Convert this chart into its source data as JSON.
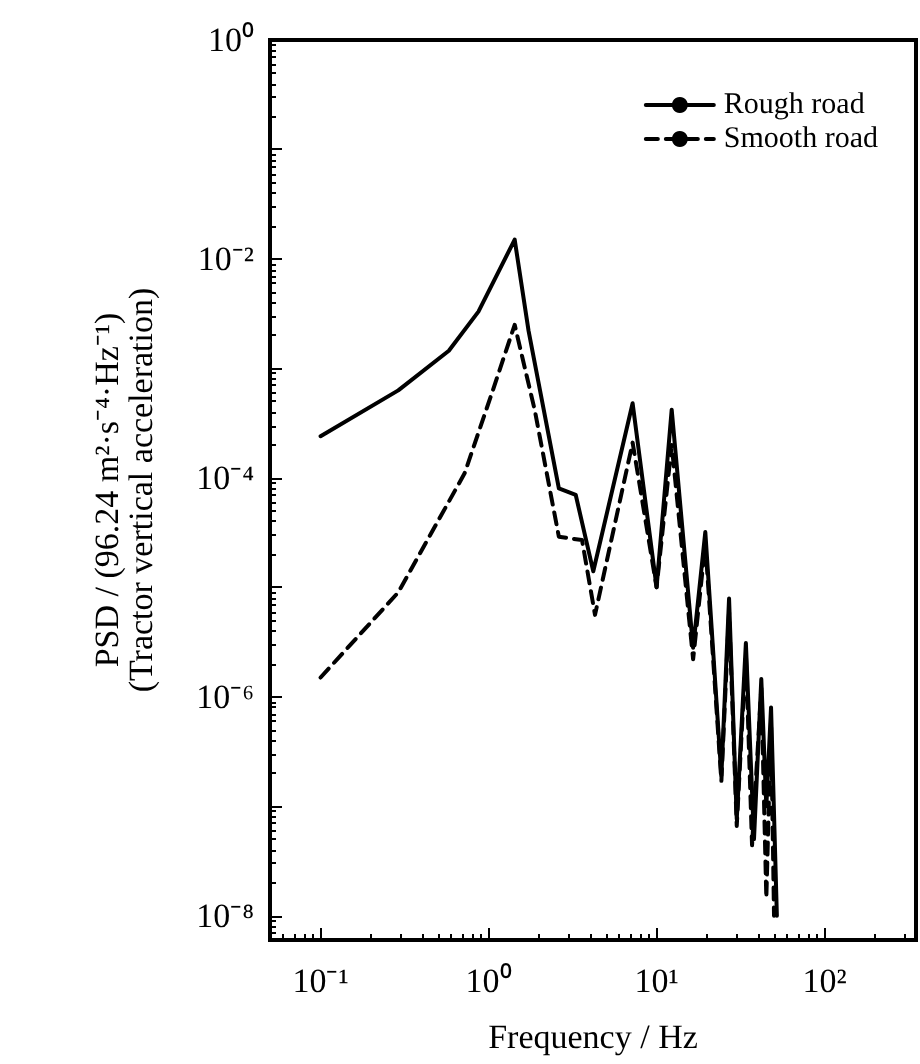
{
  "chart_data": {
    "type": "line",
    "xlabel": "Frequency / Hz",
    "ylabel": "PSD / (96.24 m²·s⁻⁴·Hz⁻¹)\n(Tractor vertical acceleration)",
    "log": "xy",
    "grid": false,
    "legend": "top right",
    "marker": "none",
    "xlim": [
      0.05,
      350
    ],
    "ylim": [
      6e-09,
      1
    ],
    "xticks": [
      {
        "value": 0.1,
        "label": "10⁻¹"
      },
      {
        "value": 1,
        "label": "10⁰"
      },
      {
        "value": 10,
        "label": "10¹"
      },
      {
        "value": 100,
        "label": "10²"
      }
    ],
    "yticks": [
      {
        "value": 1e-08,
        "label": "10⁻⁸"
      },
      {
        "value": 1e-07,
        "label": null
      },
      {
        "value": 1e-06,
        "label": "10⁻⁶"
      },
      {
        "value": 1e-05,
        "label": null
      },
      {
        "value": 0.0001,
        "label": "10⁻⁴"
      },
      {
        "value": 0.001,
        "label": null
      },
      {
        "value": 0.01,
        "label": "10⁻²"
      },
      {
        "value": 0.1,
        "label": null
      },
      {
        "value": 1,
        "label": "10⁰"
      }
    ],
    "series": [
      {
        "name": "Rough road",
        "color": "#000000",
        "line_style": "solid",
        "x": [
          0.1,
          0.29,
          0.58,
          0.87,
          1.43,
          1.73,
          2.62,
          3.3,
          4.2,
          7.2,
          10,
          12.3,
          16.5,
          19.5,
          24.3,
          27,
          30,
          34,
          38,
          42,
          45,
          48,
          52
        ],
        "values": [
          0.00024,
          0.00063,
          0.00145,
          0.0033,
          0.015,
          0.0022,
          8e-05,
          7e-05,
          1.4e-05,
          0.00048,
          1e-05,
          0.00042,
          2.8e-06,
          3.2e-05,
          1.9e-07,
          7.9e-06,
          7.6e-08,
          3.1e-06,
          5e-08,
          1.45e-06,
          1e-07,
          8e-07,
          1e-08
        ]
      },
      {
        "name": "Smooth road",
        "color": "#000000",
        "line_style": "dashed",
        "x": [
          0.1,
          0.29,
          0.72,
          1.06,
          1.43,
          1.88,
          2.62,
          3.6,
          4.3,
          7.2,
          10,
          12.3,
          16.5,
          19.5,
          24.3,
          27,
          30,
          34,
          37,
          42,
          45,
          48,
          50
        ],
        "values": [
          1.5e-06,
          9e-06,
          0.00011,
          0.00063,
          0.0025,
          0.00042,
          2.9e-05,
          2.7e-05,
          5.6e-06,
          0.00021,
          1e-05,
          0.0002,
          2.2e-06,
          2.5e-05,
          1.7e-07,
          6e-06,
          6.6e-08,
          2.5e-06,
          4.4e-08,
          1.2e-06,
          1.45e-08,
          6e-07,
          1e-08
        ]
      }
    ]
  }
}
